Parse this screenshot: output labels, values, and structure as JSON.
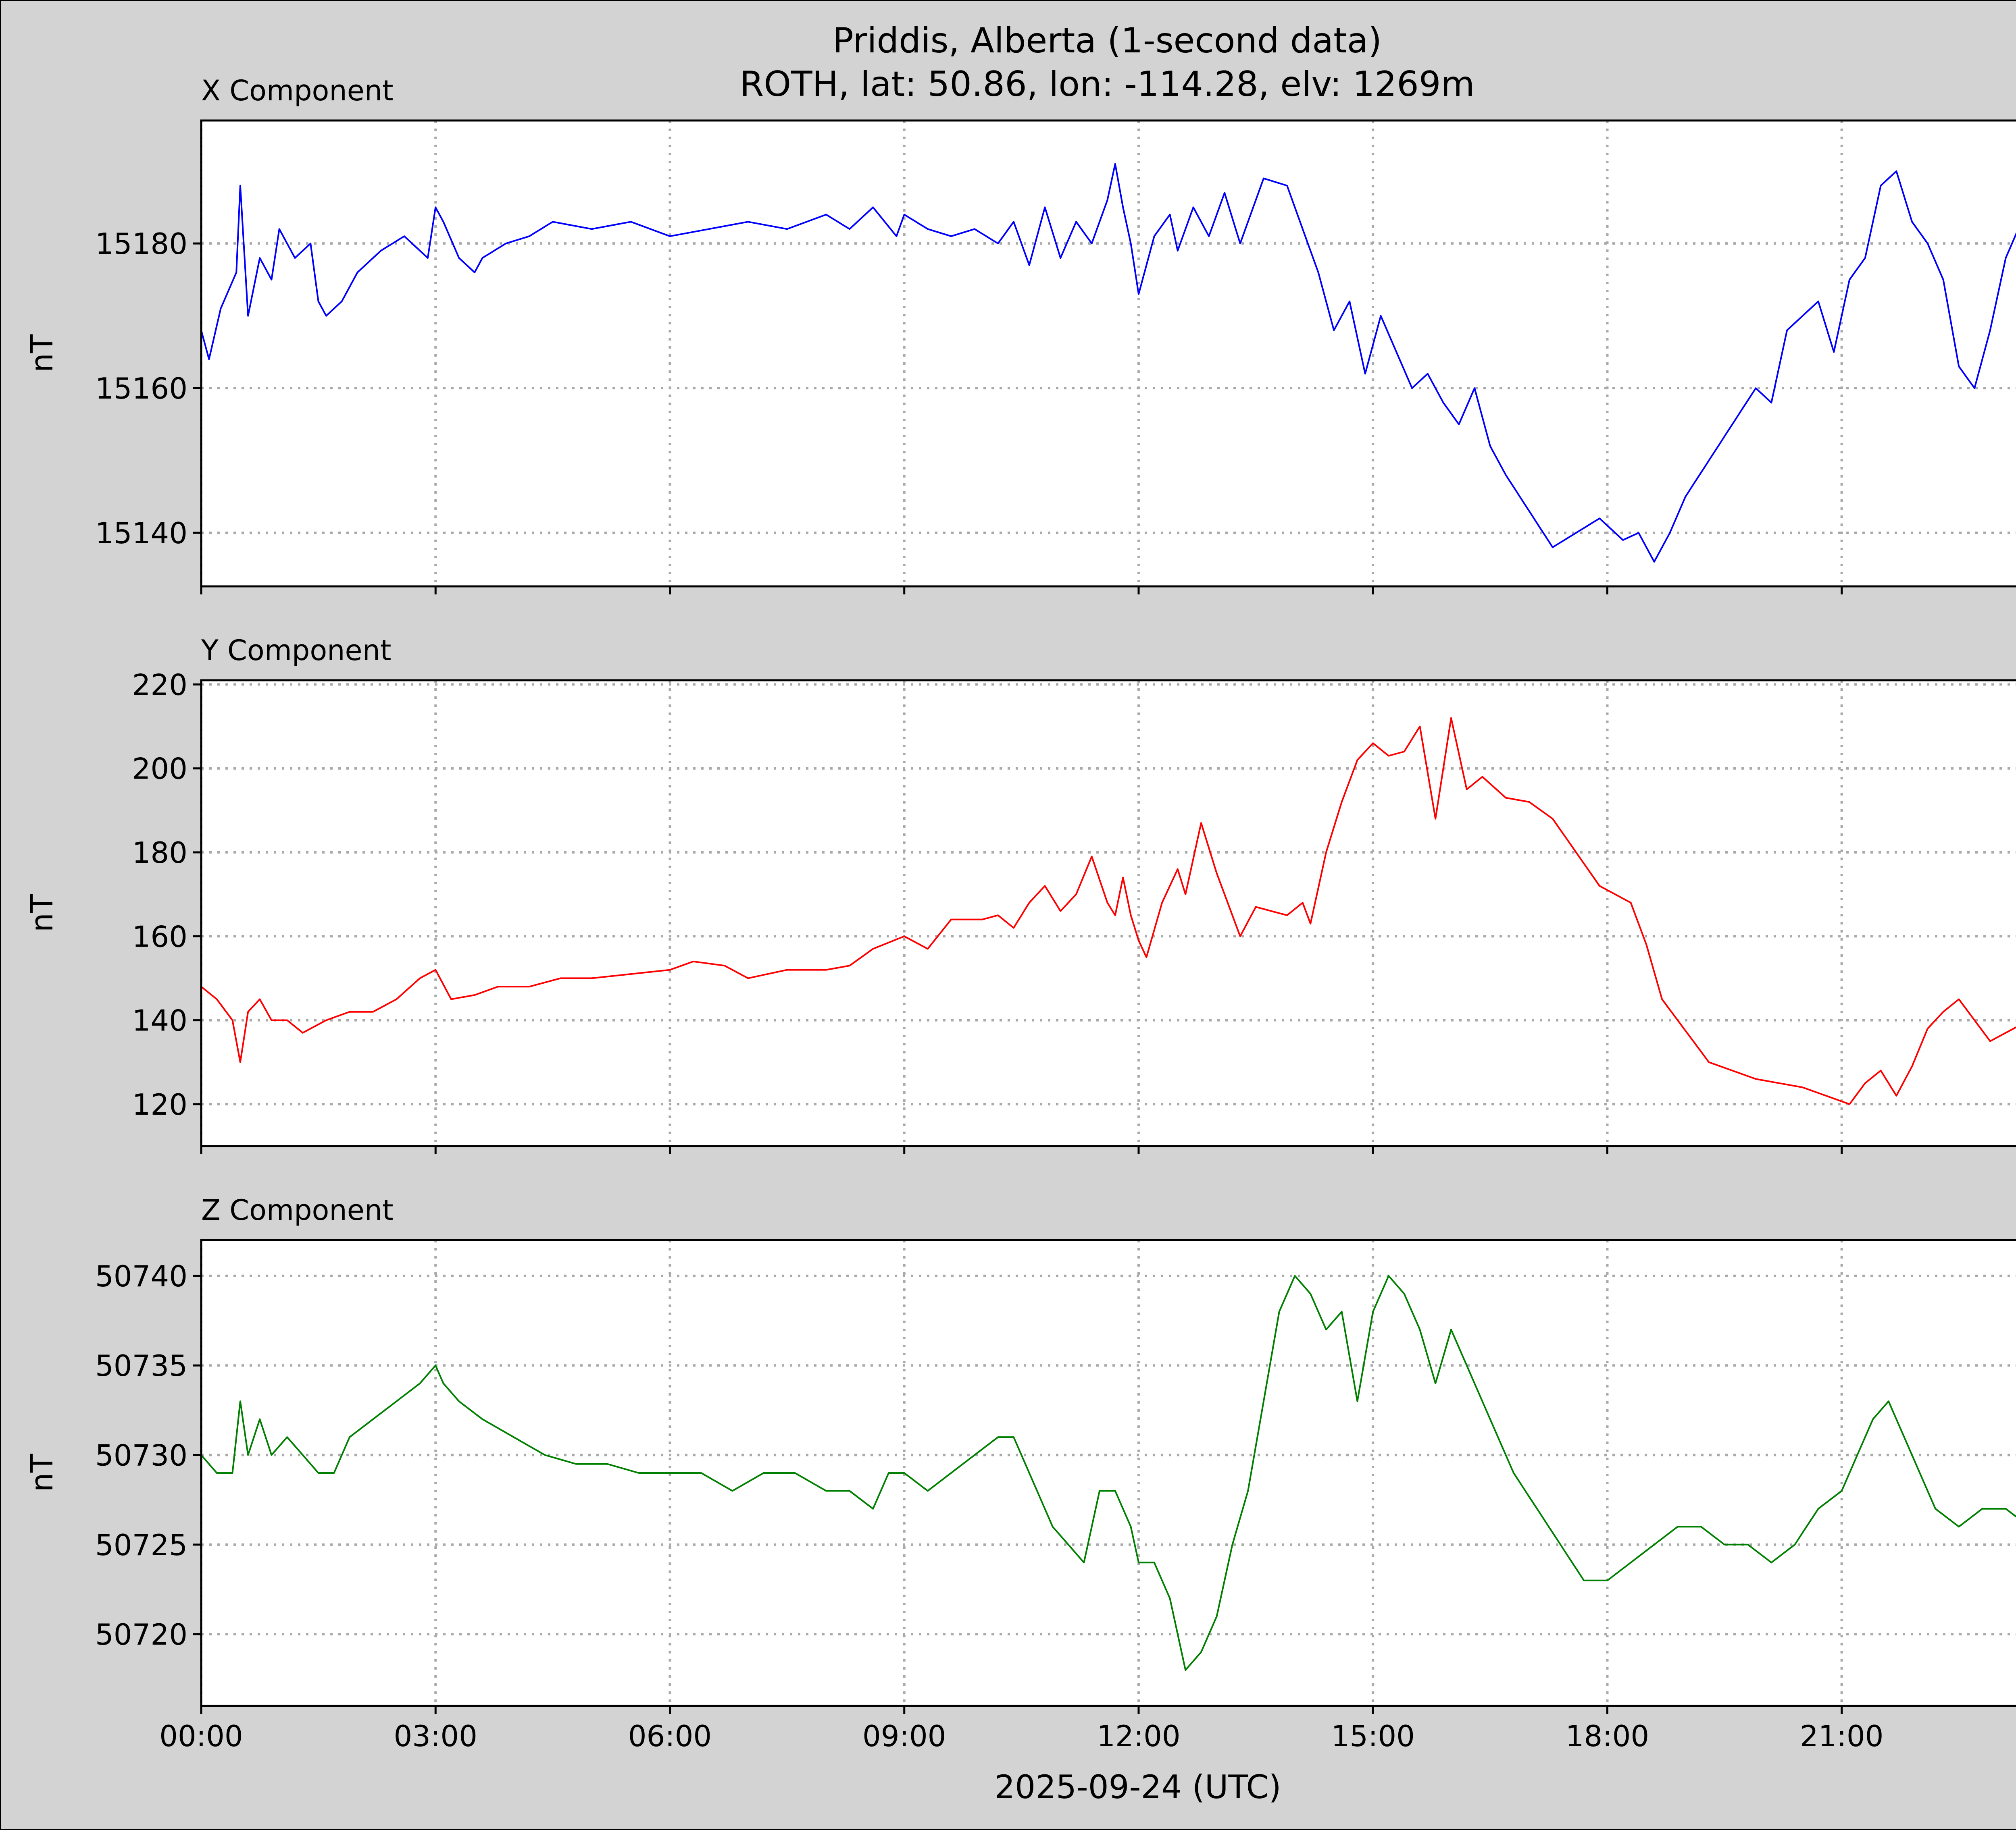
{
  "figure": {
    "title_line1": "Priddis, Alberta (1-second data)",
    "title_line2": "ROTH, lat: 50.86, lon: -114.28, elv: 1269m",
    "xlabel": "2025-09-24 (UTC)",
    "background": "#d3d3d3"
  },
  "chart_data": [
    {
      "type": "line",
      "title": "X Component",
      "ylabel": "nT",
      "color": "#0000ff",
      "xlim": [
        "00:00",
        "23:59"
      ],
      "ylim": [
        15132.6,
        15197
      ],
      "yticks": [
        "15140",
        "15160",
        "15180"
      ],
      "xticks": [
        "00:00",
        "03:00",
        "06:00",
        "09:00",
        "12:00",
        "15:00",
        "18:00",
        "21:00"
      ],
      "grid": true,
      "series": [
        {
          "x_hours": [
            0,
            0.1,
            0.25,
            0.45,
            0.5,
            0.6,
            0.75,
            0.9,
            1.0,
            1.2,
            1.4,
            1.5,
            1.6,
            1.8,
            2.0,
            2.3,
            2.6,
            2.9,
            3.0,
            3.1,
            3.3,
            3.5,
            3.6,
            3.9,
            4.2,
            4.5,
            5.0,
            5.5,
            6.0,
            6.5,
            7.0,
            7.5,
            8.0,
            8.3,
            8.6,
            8.9,
            9.0,
            9.3,
            9.6,
            9.9,
            10.2,
            10.4,
            10.6,
            10.8,
            11.0,
            11.2,
            11.4,
            11.6,
            11.7,
            11.8,
            11.9,
            12.0,
            12.2,
            12.4,
            12.5,
            12.7,
            12.9,
            13.1,
            13.3,
            13.6,
            13.9,
            14.1,
            14.3,
            14.5,
            14.7,
            14.9,
            15.1,
            15.3,
            15.5,
            15.7,
            15.9,
            16.1,
            16.3,
            16.5,
            16.7,
            17.0,
            17.3,
            17.6,
            17.9,
            18.2,
            18.4,
            18.6,
            18.8,
            19.0,
            19.3,
            19.6,
            19.9,
            20.1,
            20.3,
            20.5,
            20.7,
            20.9,
            21.1,
            21.3,
            21.5,
            21.7,
            21.9,
            22.1,
            22.3,
            22.5,
            22.7,
            22.9,
            23.1,
            23.3,
            23.5,
            23.7,
            23.98
          ],
          "values": [
            15168,
            15164,
            15171,
            15176,
            15188,
            15170,
            15178,
            15175,
            15182,
            15178,
            15180,
            15172,
            15170,
            15172,
            15176,
            15179,
            15181,
            15178,
            15185,
            15183,
            15178,
            15176,
            15178,
            15180,
            15181,
            15183,
            15182,
            15183,
            15181,
            15182,
            15183,
            15182,
            15184,
            15182,
            15185,
            15181,
            15184,
            15182,
            15181,
            15182,
            15180,
            15183,
            15177,
            15185,
            15178,
            15183,
            15180,
            15186,
            15191,
            15185,
            15180,
            15173,
            15181,
            15184,
            15179,
            15185,
            15181,
            15187,
            15180,
            15189,
            15188,
            15182,
            15176,
            15168,
            15172,
            15162,
            15170,
            15165,
            15160,
            15162,
            15158,
            15155,
            15160,
            15152,
            15148,
            15143,
            15138,
            15140,
            15142,
            15139,
            15140,
            15136,
            15140,
            15145,
            15150,
            15155,
            15160,
            15158,
            15168,
            15170,
            15172,
            15165,
            15175,
            15178,
            15188,
            15190,
            15183,
            15180,
            15175,
            15163,
            15160,
            15168,
            15178,
            15183,
            15185,
            15181,
            15178
          ]
        }
      ]
    },
    {
      "type": "line",
      "title": "Y Component",
      "ylabel": "nT",
      "color": "#ff0000",
      "xlim": [
        "00:00",
        "23:59"
      ],
      "ylim": [
        110,
        221
      ],
      "yticks": [
        "120",
        "140",
        "160",
        "180",
        "200",
        "220"
      ],
      "xticks": [
        "00:00",
        "03:00",
        "06:00",
        "09:00",
        "12:00",
        "15:00",
        "18:00",
        "21:00"
      ],
      "grid": true,
      "series": [
        {
          "x_hours": [
            0,
            0.2,
            0.4,
            0.5,
            0.6,
            0.75,
            0.9,
            1.1,
            1.3,
            1.6,
            1.9,
            2.2,
            2.5,
            2.8,
            3.0,
            3.2,
            3.5,
            3.8,
            4.2,
            4.6,
            5.0,
            5.5,
            6.0,
            6.3,
            6.7,
            7.0,
            7.5,
            8.0,
            8.3,
            8.6,
            9.0,
            9.3,
            9.6,
            10.0,
            10.2,
            10.4,
            10.6,
            10.8,
            11.0,
            11.2,
            11.4,
            11.6,
            11.7,
            11.8,
            11.9,
            12.0,
            12.1,
            12.3,
            12.5,
            12.6,
            12.8,
            13.0,
            13.1,
            13.3,
            13.5,
            13.7,
            13.9,
            14.1,
            14.2,
            14.4,
            14.6,
            14.8,
            15.0,
            15.2,
            15.4,
            15.6,
            15.8,
            16.0,
            16.2,
            16.4,
            16.7,
            17.0,
            17.3,
            17.6,
            17.9,
            18.1,
            18.3,
            18.5,
            18.7,
            18.9,
            19.1,
            19.3,
            19.6,
            19.9,
            20.2,
            20.5,
            20.8,
            21.1,
            21.3,
            21.5,
            21.7,
            21.9,
            22.1,
            22.3,
            22.5,
            22.7,
            22.9,
            23.1,
            23.3,
            23.5,
            23.7,
            23.98
          ],
          "values": [
            148,
            145,
            140,
            130,
            142,
            145,
            140,
            140,
            137,
            140,
            142,
            142,
            145,
            150,
            152,
            145,
            146,
            148,
            148,
            150,
            150,
            151,
            152,
            154,
            153,
            150,
            152,
            152,
            153,
            157,
            160,
            157,
            164,
            164,
            165,
            162,
            168,
            172,
            166,
            170,
            179,
            168,
            165,
            174,
            165,
            159,
            155,
            168,
            176,
            170,
            187,
            175,
            170,
            160,
            167,
            166,
            165,
            168,
            163,
            180,
            192,
            202,
            206,
            203,
            204,
            210,
            188,
            212,
            195,
            198,
            193,
            192,
            188,
            180,
            172,
            170,
            168,
            158,
            145,
            140,
            135,
            130,
            128,
            126,
            125,
            124,
            122,
            120,
            125,
            128,
            122,
            129,
            138,
            142,
            145,
            140,
            135,
            137,
            139,
            140,
            142,
            146
          ]
        }
      ]
    },
    {
      "type": "line",
      "title": "Z Component",
      "ylabel": "nT",
      "color": "#008000",
      "xlim": [
        "00:00",
        "23:59"
      ],
      "ylim": [
        50716,
        50742
      ],
      "yticks": [
        "50720",
        "50725",
        "50730",
        "50735",
        "50740"
      ],
      "xticks": [
        "00:00",
        "03:00",
        "06:00",
        "09:00",
        "12:00",
        "15:00",
        "18:00",
        "21:00"
      ],
      "xticklabels": [
        "00:00",
        "03:00",
        "06:00",
        "09:00",
        "12:00",
        "15:00",
        "18:00",
        "21:00"
      ],
      "grid": true,
      "series": [
        {
          "x_hours": [
            0,
            0.2,
            0.4,
            0.5,
            0.6,
            0.75,
            0.9,
            1.1,
            1.3,
            1.5,
            1.7,
            1.9,
            2.2,
            2.5,
            2.8,
            3.0,
            3.1,
            3.3,
            3.6,
            4.0,
            4.4,
            4.8,
            5.2,
            5.6,
            6.0,
            6.4,
            6.8,
            7.2,
            7.6,
            8.0,
            8.3,
            8.6,
            8.8,
            9.0,
            9.3,
            9.6,
            9.9,
            10.2,
            10.4,
            10.7,
            10.9,
            11.1,
            11.3,
            11.5,
            11.7,
            11.9,
            12.0,
            12.2,
            12.4,
            12.6,
            12.8,
            13.0,
            13.2,
            13.4,
            13.6,
            13.8,
            14.0,
            14.2,
            14.4,
            14.6,
            14.8,
            15.0,
            15.2,
            15.4,
            15.6,
            15.8,
            16.0,
            16.2,
            16.5,
            16.8,
            17.1,
            17.4,
            17.7,
            18.0,
            18.3,
            18.6,
            18.9,
            19.2,
            19.5,
            19.8,
            20.1,
            20.4,
            20.7,
            21.0,
            21.2,
            21.4,
            21.6,
            21.8,
            22.0,
            22.2,
            22.5,
            22.8,
            23.1,
            23.4,
            23.6,
            23.8,
            23.98
          ],
          "values": [
            50730,
            50729,
            50729,
            50733,
            50730,
            50732,
            50730,
            50731,
            50730,
            50729,
            50729,
            50731,
            50732,
            50733,
            50734,
            50735,
            50734,
            50733,
            50732,
            50731,
            50730,
            50729.5,
            50729.5,
            50729,
            50729,
            50729,
            50728,
            50729,
            50729,
            50728,
            50728,
            50727,
            50729,
            50729,
            50728,
            50729,
            50730,
            50731,
            50731,
            50728,
            50726,
            50725,
            50724,
            50728,
            50728,
            50726,
            50724,
            50724,
            50722,
            50718,
            50719,
            50721,
            50725,
            50728,
            50733,
            50738,
            50740,
            50739,
            50737,
            50738,
            50733,
            50738,
            50740,
            50739,
            50737,
            50734,
            50737,
            50735,
            50732,
            50729,
            50727,
            50725,
            50723,
            50723,
            50724,
            50725,
            50726,
            50726,
            50725,
            50725,
            50724,
            50725,
            50727,
            50728,
            50730,
            50732,
            50733,
            50731,
            50729,
            50727,
            50726,
            50727,
            50727,
            50726,
            50727,
            50729,
            50725
          ]
        }
      ]
    }
  ]
}
